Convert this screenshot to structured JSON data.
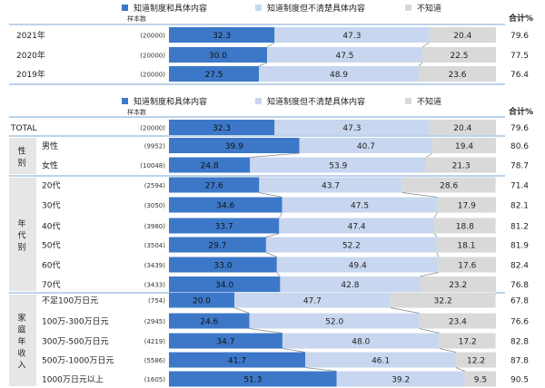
{
  "colors": {
    "know_detail": "#3d78c8",
    "know_vague": "#c8d7ef",
    "dont_know": "#d9d9d9",
    "separator": "#7aa7d6",
    "row_alt": "#e6e6e6"
  },
  "legend": {
    "items": [
      "知道制度和具体内容",
      "知道制度但不清楚具体内容",
      "不知道"
    ],
    "sample_label": "样本数",
    "total_label": "合计%"
  },
  "chart_data": [
    {
      "type": "bar",
      "stacked": true,
      "orientation": "horizontal",
      "series_names": [
        "知道制度和具体内容",
        "知道制度但不清楚具体内容",
        "不知道"
      ],
      "xlim": [
        0,
        100
      ],
      "rows": [
        {
          "label": "2021年",
          "sample": "(20000)",
          "values": [
            32.3,
            47.3,
            20.4
          ],
          "total": "79.6"
        },
        {
          "label": "2020年",
          "sample": "(20000)",
          "values": [
            30.0,
            47.5,
            22.5
          ],
          "total": "77.5"
        },
        {
          "label": "2019年",
          "sample": "(20000)",
          "values": [
            27.5,
            48.9,
            23.6
          ],
          "total": "76.4"
        }
      ]
    },
    {
      "type": "bar",
      "stacked": true,
      "orientation": "horizontal",
      "series_names": [
        "知道制度和具体内容",
        "知道制度但不清楚具体内容",
        "不知道"
      ],
      "xlim": [
        0,
        100
      ],
      "groups": [
        {
          "name": "",
          "rows": [
            {
              "label": "TOTAL",
              "sample": "(20000)",
              "values": [
                32.3,
                47.3,
                20.4
              ],
              "total": "79.6"
            }
          ]
        },
        {
          "name": "性别",
          "rows": [
            {
              "label": "男性",
              "sample": "(9952)",
              "values": [
                39.9,
                40.7,
                19.4
              ],
              "total": "80.6"
            },
            {
              "label": "女性",
              "sample": "(10048)",
              "values": [
                24.8,
                53.9,
                21.3
              ],
              "total": "78.7"
            }
          ]
        },
        {
          "name": "年代别",
          "rows": [
            {
              "label": "20代",
              "sample": "(2594)",
              "values": [
                27.6,
                43.7,
                28.6
              ],
              "total": "71.4"
            },
            {
              "label": "30代",
              "sample": "(3050)",
              "values": [
                34.6,
                47.5,
                17.9
              ],
              "total": "82.1"
            },
            {
              "label": "40代",
              "sample": "(3980)",
              "values": [
                33.7,
                47.4,
                18.8
              ],
              "total": "81.2"
            },
            {
              "label": "50代",
              "sample": "(3504)",
              "values": [
                29.7,
                52.2,
                18.1
              ],
              "total": "81.9"
            },
            {
              "label": "60代",
              "sample": "(3439)",
              "values": [
                33.0,
                49.4,
                17.6
              ],
              "total": "82.4"
            },
            {
              "label": "70代",
              "sample": "(3433)",
              "values": [
                34.0,
                42.8,
                23.2
              ],
              "total": "76.8"
            }
          ]
        },
        {
          "name": "家庭年收入",
          "rows": [
            {
              "label": "不足100万日元",
              "sample": "(754)",
              "values": [
                20.0,
                47.7,
                32.2
              ],
              "total": "67.8"
            },
            {
              "label": "100万-300万日元",
              "sample": "(2945)",
              "values": [
                24.6,
                52.0,
                23.4
              ],
              "total": "76.6"
            },
            {
              "label": "300万-500万日元",
              "sample": "(4219)",
              "values": [
                34.7,
                48.0,
                17.2
              ],
              "total": "82.8"
            },
            {
              "label": "500万-1000万日元",
              "sample": "(5586)",
              "values": [
                41.7,
                46.1,
                12.2
              ],
              "total": "87.8"
            },
            {
              "label": "1000万日元以上",
              "sample": "(1605)",
              "values": [
                51.3,
                39.2,
                9.5
              ],
              "total": "90.5"
            }
          ]
        }
      ]
    }
  ]
}
